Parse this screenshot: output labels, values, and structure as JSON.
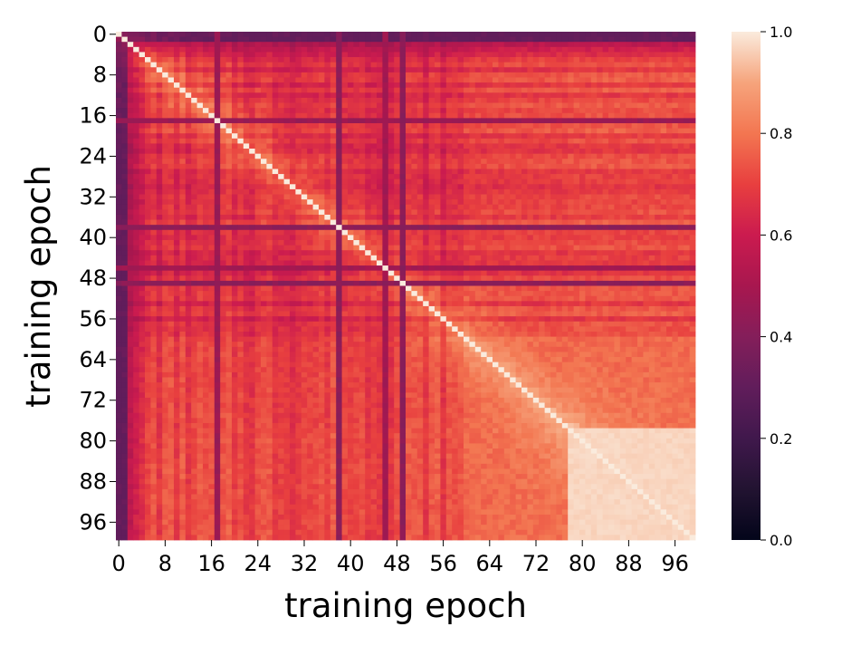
{
  "chart_data": {
    "type": "heatmap",
    "xlabel": "training epoch",
    "ylabel": "training epoch",
    "n_epochs": 100,
    "epoch_range": [
      0,
      99
    ],
    "x_ticks": [
      "0",
      "8",
      "16",
      "24",
      "32",
      "40",
      "48",
      "56",
      "64",
      "72",
      "80",
      "88",
      "96"
    ],
    "y_ticks": [
      "0",
      "8",
      "16",
      "24",
      "32",
      "40",
      "48",
      "56",
      "64",
      "72",
      "80",
      "88",
      "96"
    ],
    "tick_values": [
      0,
      8,
      16,
      24,
      32,
      40,
      48,
      56,
      64,
      72,
      80,
      88,
      96
    ],
    "colorbar": {
      "range": [
        0.0,
        1.0
      ],
      "ticks": [
        "0.0",
        "0.2",
        "0.4",
        "0.6",
        "0.8",
        "1.0"
      ],
      "colormap": "rocket"
    },
    "diagonal_value": 1.0,
    "structure": {
      "early_epochs_low_similarity": [
        0,
        4
      ],
      "late_converged_block": {
        "from": 78,
        "to": 99,
        "value": 0.96
      },
      "outlier_epochs": [
        {
          "epoch": 38,
          "value": 0.42
        },
        {
          "epoch": 49,
          "value": 0.42
        },
        {
          "epoch": 17,
          "value": 0.46
        },
        {
          "epoch": 46,
          "value": 0.48
        }
      ]
    }
  }
}
